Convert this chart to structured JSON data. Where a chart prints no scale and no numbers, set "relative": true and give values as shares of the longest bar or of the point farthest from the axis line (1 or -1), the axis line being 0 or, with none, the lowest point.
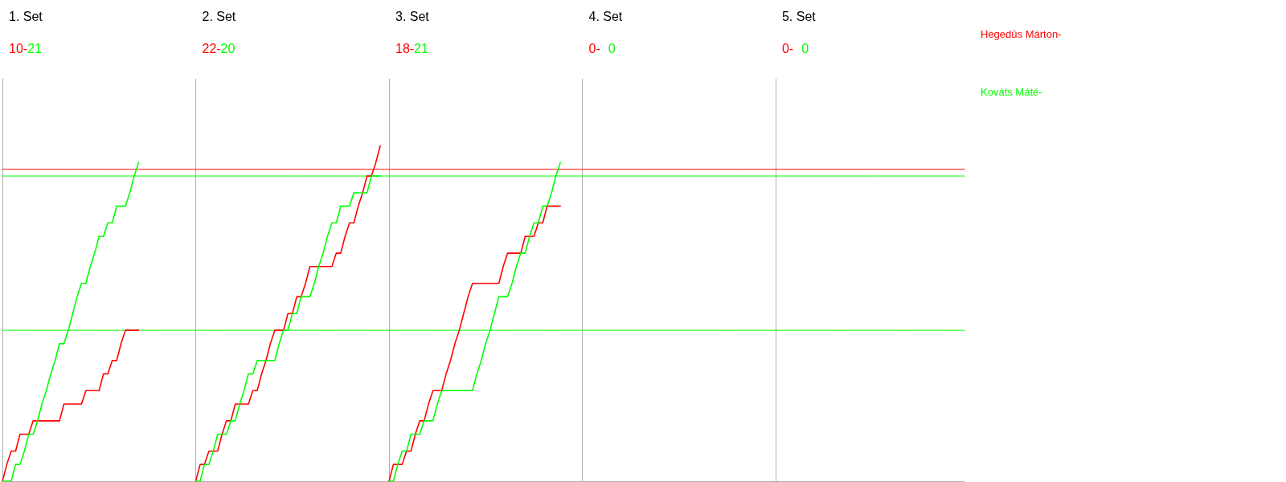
{
  "chart_data": {
    "type": "line",
    "relative": true,
    "categories": [
      null,
      null,
      null,
      null,
      null,
      null,
      null,
      null,
      null,
      null,
      null,
      null,
      null,
      null,
      null,
      null,
      null,
      null,
      null,
      null,
      null,
      null,
      null,
      null,
      null,
      null,
      null,
      null,
      null,
      null,
      null,
      null,
      null,
      null,
      null,
      null,
      null,
      null,
      null,
      null,
      null,
      null,
      null,
      null,
      null,
      null,
      null,
      null,
      null,
      null,
      null,
      null,
      null,
      null,
      null,
      null,
      null,
      null,
      null,
      null,
      null,
      null,
      null,
      null,
      null,
      null,
      null,
      null,
      null,
      null,
      null,
      null,
      null,
      null,
      null,
      null,
      null,
      null,
      null,
      null,
      null,
      null,
      null,
      null,
      null,
      null,
      null,
      null,
      null,
      null,
      null,
      null,
      null,
      null,
      null,
      null,
      null,
      null,
      null,
      null,
      null,
      null,
      null,
      null,
      null,
      null,
      null,
      null,
      null,
      null,
      null,
      null,
      null,
      null,
      null,
      null,
      null,
      null,
      null,
      null,
      null,
      null,
      null,
      null,
      null,
      null,
      null,
      null,
      null,
      null,
      null,
      null,
      null,
      null,
      null,
      null,
      null,
      null,
      null,
      null,
      null,
      null,
      null,
      null,
      null,
      null,
      null,
      null,
      null,
      null,
      null,
      null,
      null,
      null,
      null,
      null,
      null,
      null,
      null,
      null,
      null,
      null,
      null,
      null,
      null,
      null,
      null,
      null,
      null,
      null,
      null,
      null,
      null,
      null,
      null,
      null,
      null,
      null,
      null,
      null,
      null,
      null,
      null,
      null,
      null,
      null,
      null,
      null,
      null,
      null,
      null,
      null,
      null,
      null,
      null,
      null,
      null,
      null,
      null,
      null,
      null,
      null,
      null,
      null,
      null,
      null,
      null,
      null,
      null,
      null,
      null,
      null,
      null,
      null,
      null,
      null,
      null,
      null,
      null,
      null
    ],
    "tick_labels": false,
    "grid": "x",
    "line_style": "solid",
    "annotations": [
      "1. Set",
      "10-",
      "21",
      "2. Set",
      "22-",
      "20",
      "3. Set",
      "18-",
      "21",
      "4. Set",
      "0-",
      "0",
      "5. Set",
      "0-",
      "0"
    ],
    "series": [
      {
        "color": "#ff0000",
        "values": [
          0.93,
          0.93,
          0.93,
          0.93,
          0.93,
          0.93,
          0.93,
          0.93,
          0.93,
          0.93,
          0.93,
          0.93,
          0.93,
          0.93,
          0.93,
          0.93,
          0.93,
          0.93,
          0.93,
          0.93,
          0.93,
          0.93,
          0.93,
          0.93,
          0.93,
          0.93,
          0.93,
          0.93,
          0.93,
          0.93,
          0.93,
          0.93,
          0.93,
          0.93,
          0.93,
          0.93,
          0.93,
          0.93,
          0.93,
          0.93,
          0.93,
          0.93,
          0.93,
          0.93,
          0.93,
          0.93,
          0.93,
          0.93,
          0.93,
          0.93,
          0.93,
          0.93,
          0.93,
          0.93,
          0.93,
          0.93,
          0.93,
          0.93,
          0.93,
          0.93,
          0.93,
          0.93,
          0.93,
          0.93,
          0.93,
          0.93,
          0.93,
          0.93,
          0.93,
          0.93,
          0.93,
          0.93,
          0.93,
          0.93,
          0.93,
          0.93,
          0.93,
          0.93,
          0.93,
          0.93,
          0.93,
          0.93,
          0.93,
          0.93,
          0.93,
          0.93,
          0.93,
          0.93,
          0.93,
          0.93,
          0.93,
          0.93,
          0.93,
          0.93,
          0.93,
          0.93,
          0.93,
          0.93,
          0.93,
          0.93,
          0.93,
          0.93,
          0.93,
          0.93,
          0.93,
          0.93,
          0.93,
          0.93,
          0.93,
          0.93,
          0.93,
          0.93,
          0.93,
          0.93,
          0.93,
          0.93,
          0.93,
          0.93,
          0.93,
          0.93,
          0.93,
          0.93,
          0.93,
          0.93,
          0.93,
          0.93,
          0.93,
          0.93,
          0.93,
          0.93,
          0.93,
          0.93,
          0.93,
          0.93,
          0.93,
          0.93,
          0.93,
          0.93,
          0.93,
          0.93,
          0.93,
          0.93,
          0.93,
          0.93,
          0.93,
          0.93,
          0.93,
          0.93,
          0.93,
          0.93,
          0.93,
          0.93,
          0.93,
          0.93,
          0.93,
          0.93,
          0.93,
          0.93,
          0.93,
          0.93,
          0.93,
          0.93,
          0.93,
          0.93,
          0.93,
          0.93,
          0.93,
          0.93,
          0.93,
          0.93,
          0.93,
          0.93,
          0.93,
          0.93,
          0.93,
          0.93,
          0.93,
          0.93,
          0.93,
          0.93,
          0.93,
          0.93,
          0.93,
          0.93,
          0.93,
          0.93,
          0.93,
          0.93,
          0.93,
          0.93,
          0.93,
          0.93,
          0.93,
          0.93,
          0.93,
          0.93,
          0.93,
          0.93,
          0.93,
          0.93,
          0.93,
          0.93,
          0.93,
          0.93,
          0.93,
          0.93,
          0.93,
          0.93,
          0.93,
          0.93,
          0.93,
          0.93,
          0.93,
          0.93,
          0.93,
          0.93,
          0.93,
          0.93,
          0.93,
          0.93
        ]
      },
      {
        "color": "#00ff00",
        "values": [
          0.91,
          0.91,
          0.91,
          0.91,
          0.91,
          0.91,
          0.91,
          0.91,
          0.91,
          0.91,
          0.91,
          0.91,
          0.91,
          0.91,
          0.91,
          0.91,
          0.91,
          0.91,
          0.91,
          0.91,
          0.91,
          0.91,
          0.91,
          0.91,
          0.91,
          0.91,
          0.91,
          0.91,
          0.91,
          0.91,
          0.91,
          0.91,
          0.91,
          0.91,
          0.91,
          0.91,
          0.91,
          0.91,
          0.91,
          0.91,
          0.91,
          0.91,
          0.91,
          0.91,
          0.91,
          0.91,
          0.91,
          0.91,
          0.91,
          0.91,
          0.91,
          0.91,
          0.91,
          0.91,
          0.91,
          0.91,
          0.91,
          0.91,
          0.91,
          0.91,
          0.91,
          0.91,
          0.91,
          0.91,
          0.91,
          0.91,
          0.91,
          0.91,
          0.91,
          0.91,
          0.91,
          0.91,
          0.91,
          0.91,
          0.91,
          0.91,
          0.91,
          0.91,
          0.91,
          0.91,
          0.91,
          0.91,
          0.91,
          0.91,
          0.91,
          0.91,
          0.91,
          0.91,
          0.91,
          0.91,
          0.91,
          0.91,
          0.91,
          0.91,
          0.91,
          0.91,
          0.91,
          0.91,
          0.91,
          0.91,
          0.91,
          0.91,
          0.91,
          0.91,
          0.91,
          0.91,
          0.91,
          0.91,
          0.91,
          0.91,
          0.91,
          0.91,
          0.91,
          0.91,
          0.91,
          0.91,
          0.91,
          0.91,
          0.91,
          0.91,
          0.91,
          0.91,
          0.91,
          0.91,
          0.91,
          0.91,
          0.91,
          0.91,
          0.91,
          0.91,
          0.91,
          0.91,
          0.91,
          0.91,
          0.91,
          0.91,
          0.91,
          0.91,
          0.91,
          0.91,
          0.91,
          0.91,
          0.91,
          0.91,
          0.91,
          0.91,
          0.91,
          0.91,
          0.91,
          0.91,
          0.91,
          0.91,
          0.91,
          0.91,
          0.91,
          0.91,
          0.91,
          0.91,
          0.91,
          0.91,
          0.91,
          0.91,
          0.91,
          0.91,
          0.91,
          0.91,
          0.91,
          0.91,
          0.91,
          0.91,
          0.91,
          0.91,
          0.91,
          0.91,
          0.91,
          0.91,
          0.91,
          0.91,
          0.91,
          0.91,
          0.91,
          0.91,
          0.91,
          0.91,
          0.91,
          0.91,
          0.91,
          0.91,
          0.91,
          0.91,
          0.91,
          0.91,
          0.91,
          0.91,
          0.91,
          0.91,
          0.91,
          0.91,
          0.91,
          0.91,
          0.91,
          0.91,
          0.91,
          0.91,
          0.91,
          0.91,
          0.91,
          0.91,
          0.91,
          0.91,
          0.91,
          0.91,
          0.91,
          0.91,
          0.91,
          0.91,
          0.91,
          0.91,
          0.91,
          0.91
        ]
      },
      {
        "color": "#00ff00",
        "values": [
          0.45,
          0.45,
          0.45,
          0.45,
          0.45,
          0.45,
          0.45,
          0.45,
          0.45,
          0.45,
          0.45,
          0.45,
          0.45,
          0.45,
          0.45,
          0.45,
          0.45,
          0.45,
          0.45,
          0.45,
          0.45,
          0.45,
          0.45,
          0.45,
          0.45,
          0.45,
          0.45,
          0.45,
          0.45,
          0.45,
          0.45,
          0.45,
          0.45,
          0.45,
          0.45,
          0.45,
          0.45,
          0.45,
          0.45,
          0.45,
          0.45,
          0.45,
          0.45,
          0.45,
          0.45,
          0.45,
          0.45,
          0.45,
          0.45,
          0.45,
          0.45,
          0.45,
          0.45,
          0.45,
          0.45,
          0.45,
          0.45,
          0.45,
          0.45,
          0.45,
          0.45,
          0.45,
          0.45,
          0.45,
          0.45,
          0.45,
          0.45,
          0.45,
          0.45,
          0.45,
          0.45,
          0.45,
          0.45,
          0.45,
          0.45,
          0.45,
          0.45,
          0.45,
          0.45,
          0.45,
          0.45,
          0.45,
          0.45,
          0.45,
          0.45,
          0.45,
          0.45,
          0.45,
          0.45,
          0.45,
          0.45,
          0.45,
          0.45,
          0.45,
          0.45,
          0.45,
          0.45,
          0.45,
          0.45,
          0.45,
          0.45,
          0.45,
          0.45,
          0.45,
          0.45,
          0.45,
          0.45,
          0.45,
          0.45,
          0.45,
          0.45,
          0.45,
          0.45,
          0.45,
          0.45,
          0.45,
          0.45,
          0.45,
          0.45,
          0.45,
          0.45,
          0.45,
          0.45,
          0.45,
          0.45,
          0.45,
          0.45,
          0.45,
          0.45,
          0.45,
          0.45,
          0.45,
          0.45,
          0.45,
          0.45,
          0.45,
          0.45,
          0.45,
          0.45,
          0.45,
          0.45,
          0.45,
          0.45,
          0.45,
          0.45,
          0.45,
          0.45,
          0.45,
          0.45,
          0.45,
          0.45,
          0.45,
          0.45,
          0.45,
          0.45,
          0.45,
          0.45,
          0.45,
          0.45,
          0.45,
          0.45,
          0.45,
          0.45,
          0.45,
          0.45,
          0.45,
          0.45,
          0.45,
          0.45,
          0.45,
          0.45,
          0.45,
          0.45,
          0.45,
          0.45,
          0.45,
          0.45,
          0.45,
          0.45,
          0.45,
          0.45,
          0.45,
          0.45,
          0.45,
          0.45,
          0.45,
          0.45,
          0.45,
          0.45,
          0.45,
          0.45,
          0.45,
          0.45,
          0.45,
          0.45,
          0.45,
          0.45,
          0.45,
          0.45,
          0.45,
          0.45,
          0.45,
          0.45,
          0.45,
          0.45,
          0.45,
          0.45,
          0.45,
          0.45,
          0.45,
          0.45,
          0.45,
          0.45,
          0.45,
          0.45,
          0.45,
          0.45,
          0.45,
          0.45,
          0.45
        ]
      },
      {
        "name": "Hegedüs Márton-",
        "color": "#ff0000",
        "values": [
          0,
          0.05,
          0.09,
          0.09,
          0.14,
          0.14,
          0.14,
          0.18,
          0.18,
          0.18,
          0.18,
          0.18,
          0.18,
          0.18,
          0.23,
          0.23,
          0.23,
          0.23,
          0.23,
          0.27,
          0.27,
          0.27,
          0.27,
          0.32,
          0.32,
          0.36,
          0.36,
          0.41,
          0.45,
          0.45,
          0.45,
          0.45,
          null,
          null,
          null,
          null,
          null,
          null,
          null,
          null,
          null,
          null,
          null,
          null,
          0,
          0.05,
          0.05,
          0.09,
          0.09,
          0.09,
          0.14,
          0.18,
          0.18,
          0.23,
          0.23,
          0.23,
          0.23,
          0.27,
          0.27,
          0.32,
          0.36,
          0.41,
          0.45,
          0.45,
          0.45,
          0.5,
          0.5,
          0.55,
          0.55,
          0.59,
          0.64,
          0.64,
          0.64,
          0.64,
          0.64,
          0.64,
          0.68,
          0.68,
          0.73,
          0.77,
          0.77,
          0.82,
          0.86,
          0.91,
          0.91,
          0.95,
          1,
          null,
          0,
          0.05,
          0.05,
          0.05,
          0.09,
          0.09,
          0.14,
          0.18,
          0.18,
          0.23,
          0.27,
          0.27,
          0.27,
          0.32,
          0.36,
          0.41,
          0.45,
          0.5,
          0.55,
          0.59,
          0.59,
          0.59,
          0.59,
          0.59,
          0.59,
          0.59,
          0.64,
          0.68,
          0.68,
          0.68,
          0.68,
          0.73,
          0.73,
          0.73,
          0.77,
          0.77,
          0.82,
          0.82,
          0.82,
          0.82,
          null,
          null,
          null,
          null,
          null,
          null,
          null,
          null,
          null,
          null,
          null,
          null,
          null,
          null,
          null,
          null,
          null,
          null,
          null,
          null,
          null,
          null,
          null,
          null,
          null,
          null,
          null,
          null,
          null,
          null,
          null,
          null,
          null,
          null,
          null,
          null,
          null,
          null,
          null,
          null,
          null,
          null,
          null,
          null,
          null,
          null,
          null,
          null,
          null,
          null,
          null,
          null,
          null,
          null,
          null,
          null,
          null,
          null,
          null,
          null,
          null,
          null,
          null,
          null,
          null,
          null,
          null,
          null,
          null,
          null,
          null,
          null,
          null,
          null,
          null,
          null,
          null,
          null,
          null,
          null,
          null,
          null,
          null,
          null,
          null,
          null,
          null,
          null,
          null,
          null,
          null,
          null
        ]
      },
      {
        "name": "Kováts Máté-",
        "color": "#00ff00",
        "values": [
          0,
          0,
          0,
          0.05,
          0.05,
          0.09,
          0.14,
          0.14,
          0.18,
          0.23,
          0.27,
          0.32,
          0.36,
          0.41,
          0.41,
          0.45,
          0.5,
          0.55,
          0.59,
          0.59,
          0.64,
          0.68,
          0.73,
          0.73,
          0.77,
          0.77,
          0.82,
          0.82,
          0.82,
          0.86,
          0.91,
          0.95,
          null,
          null,
          null,
          null,
          null,
          null,
          null,
          null,
          null,
          null,
          null,
          null,
          0,
          0,
          0.05,
          0.05,
          0.09,
          0.14,
          0.14,
          0.14,
          0.18,
          0.18,
          0.23,
          0.27,
          0.32,
          0.32,
          0.36,
          0.36,
          0.36,
          0.36,
          0.36,
          0.41,
          0.45,
          0.45,
          0.5,
          0.5,
          0.55,
          0.55,
          0.55,
          0.59,
          0.64,
          0.68,
          0.73,
          0.77,
          0.77,
          0.82,
          0.82,
          0.82,
          0.86,
          0.86,
          0.86,
          0.86,
          0.91,
          0.91,
          0.91,
          null,
          0,
          0,
          0.05,
          0.09,
          0.09,
          0.14,
          0.14,
          0.14,
          0.18,
          0.18,
          0.18,
          0.23,
          0.27,
          0.27,
          0.27,
          0.27,
          0.27,
          0.27,
          0.27,
          0.27,
          0.32,
          0.36,
          0.41,
          0.45,
          0.5,
          0.55,
          0.55,
          0.55,
          0.59,
          0.64,
          0.68,
          0.68,
          0.73,
          0.77,
          0.77,
          0.82,
          0.82,
          0.86,
          0.91,
          0.95,
          null,
          null,
          null,
          null,
          null,
          null,
          null,
          null,
          null,
          null,
          null,
          null,
          null,
          null,
          null,
          null,
          null,
          null,
          null,
          null,
          null,
          null,
          null,
          null,
          null,
          null,
          null,
          null,
          null,
          null,
          null,
          null,
          null,
          null,
          null,
          null,
          null,
          null,
          null,
          null,
          null,
          null,
          null,
          null,
          null,
          null,
          null,
          null,
          null,
          null,
          null,
          null,
          null,
          null,
          null,
          null,
          null,
          null,
          null,
          null,
          null,
          null,
          null,
          null,
          null,
          null,
          null,
          null,
          null,
          null,
          null,
          null,
          null,
          null,
          null,
          null,
          null,
          null,
          null,
          null,
          null,
          null,
          null,
          null,
          null,
          null,
          null,
          null,
          null,
          null,
          null,
          null
        ]
      }
    ]
  }
}
